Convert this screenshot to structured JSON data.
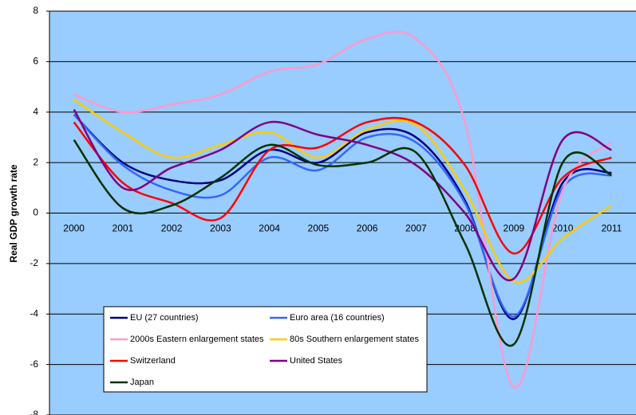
{
  "chart_data": {
    "type": "line",
    "ylabel": "Real GDP growth rate",
    "categories": [
      "2000",
      "2001",
      "2002",
      "2003",
      "2004",
      "2005",
      "2006",
      "2007",
      "2008",
      "2009",
      "2010",
      "2011"
    ],
    "ylim": [
      -8,
      8
    ],
    "yticks": [
      -8,
      -6,
      -4,
      -2,
      0,
      2,
      4,
      6,
      8
    ],
    "grid": true,
    "series": [
      {
        "name": "EU (27 countries)",
        "color": "#000080",
        "values": [
          3.9,
          2.0,
          1.3,
          1.3,
          2.5,
          2.0,
          3.2,
          3.0,
          0.5,
          -4.2,
          1.2,
          1.6
        ]
      },
      {
        "name": "Euro area (16 countries)",
        "color": "#3366ff",
        "values": [
          3.9,
          1.9,
          0.9,
          0.7,
          2.2,
          1.7,
          3.0,
          2.8,
          0.4,
          -4.1,
          1.0,
          1.5
        ]
      },
      {
        "name": "2000s Eastern enlargement states",
        "color": "#ff99cc",
        "values": [
          4.7,
          4.0,
          4.3,
          4.7,
          5.6,
          5.9,
          6.9,
          6.9,
          3.6,
          -6.9,
          0.9,
          2.8
        ]
      },
      {
        "name": "80s Southern enlargement states",
        "color": "#ffcc00",
        "values": [
          4.5,
          3.2,
          2.2,
          2.7,
          3.2,
          2.2,
          3.3,
          3.5,
          0.9,
          -2.7,
          -1.0,
          0.3
        ]
      },
      {
        "name": "Switzerland",
        "color": "#ff0000",
        "values": [
          3.6,
          1.2,
          0.4,
          -0.2,
          2.5,
          2.6,
          3.6,
          3.6,
          1.9,
          -1.6,
          1.4,
          2.2
        ]
      },
      {
        "name": "United States",
        "color": "#800080",
        "values": [
          4.1,
          1.0,
          1.8,
          2.5,
          3.6,
          3.1,
          2.7,
          1.9,
          0.0,
          -2.6,
          2.9,
          2.5
        ]
      },
      {
        "name": "Japan",
        "color": "#003300",
        "values": [
          2.9,
          0.2,
          0.3,
          1.4,
          2.7,
          1.9,
          2.0,
          2.4,
          -1.2,
          -5.2,
          2.0,
          1.5
        ]
      }
    ]
  }
}
